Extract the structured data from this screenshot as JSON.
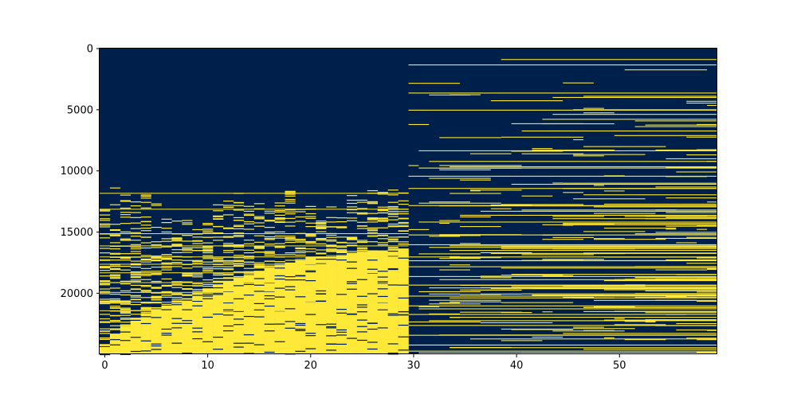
{
  "chart_data": {
    "type": "heatmap",
    "title": "",
    "xlabel": "",
    "ylabel": "",
    "n_cols": 60,
    "n_rows": 24988,
    "xlim": [
      -0.5,
      59.5
    ],
    "ylim_inverted": [
      24987.5,
      -0.5
    ],
    "x_ticks": [
      0,
      10,
      20,
      30,
      40,
      50
    ],
    "y_ticks": [
      0,
      5000,
      10000,
      15000,
      20000
    ],
    "value_range": [
      0,
      1
    ],
    "colormap": {
      "low": "#00204c",
      "high": "#fee838"
    },
    "left_block": {
      "cols": [
        0,
        29
      ],
      "dense_from_row_by_col": [
        24400,
        23300,
        22700,
        22000,
        21700,
        21300,
        21000,
        20800,
        20400,
        20000,
        19600,
        19300,
        19000,
        18700,
        18500,
        18200,
        17900,
        17700,
        17500,
        17300,
        17100,
        17000,
        16900,
        16800,
        16700,
        16600,
        16500,
        16500,
        16400,
        16400
      ],
      "scatter_from_row_by_col": [
        11600,
        11200,
        11500,
        12000,
        11600,
        12600,
        13500,
        13200,
        13600,
        13300,
        12800,
        12300,
        11200,
        11400,
        12800,
        12400,
        13000,
        12100,
        11000,
        12800,
        12400,
        12200,
        12600,
        12800,
        11900,
        12200,
        11400,
        11700,
        11300,
        11200
      ]
    },
    "right_block": {
      "cols": [
        30,
        59
      ],
      "row_density": "sparse lines, denser toward bottom",
      "full_width_line_rows": [
        1300,
        3600,
        5000,
        10400,
        11400,
        12800,
        15200,
        16000,
        17000,
        17800,
        18600,
        19300,
        20200,
        21000,
        21700,
        22600,
        23400,
        24200,
        24700
      ]
    },
    "seed": 7
  }
}
